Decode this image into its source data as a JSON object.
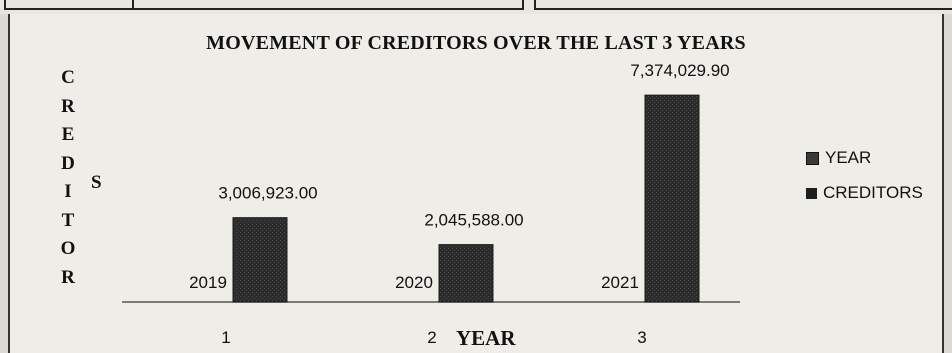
{
  "chart_data": {
    "type": "bar",
    "title": "MOVEMENT OF CREDITORS OVER THE LAST 3 YEARS",
    "ylabel": "CREDITORS",
    "xlabel": "YEAR",
    "categories": [
      "1",
      "2",
      "3"
    ],
    "series": [
      {
        "name": "YEAR",
        "values": [
          2019,
          2020,
          2021
        ],
        "labels": [
          "2019",
          "2020",
          "2021"
        ]
      },
      {
        "name": "CREDITORS",
        "values": [
          3006923.0,
          2045588.0,
          7374029.9
        ],
        "labels": [
          "3,006,923.00",
          "2,045,588.00",
          "7,374,029.90"
        ]
      }
    ],
    "ylim": [
      0,
      7700000
    ],
    "grid": false,
    "legend_position": "right",
    "colors": {
      "YEAR": "#3a3a3a",
      "CREDITORS": "#2b2b2b"
    }
  }
}
